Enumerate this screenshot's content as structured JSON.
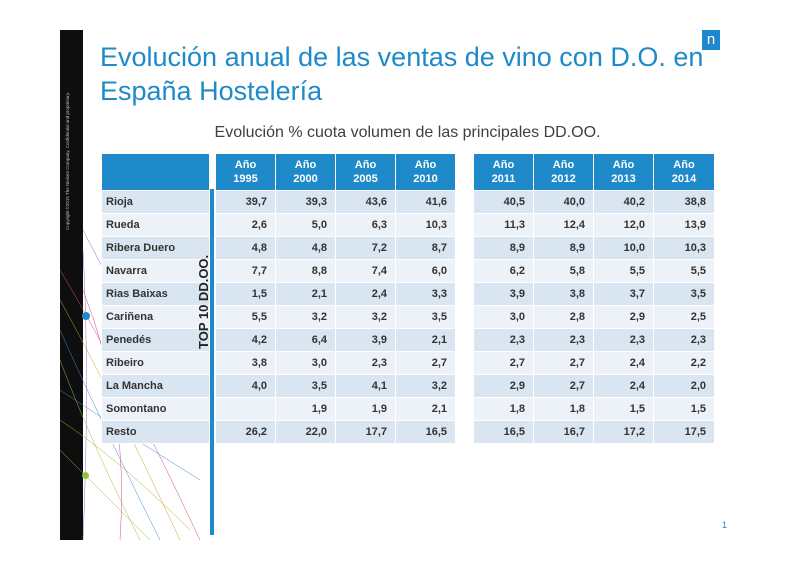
{
  "header": {
    "title_line1": "Evolución anual de las ventas de vino con D.O. en",
    "title_line2": "España Hostelería",
    "logo_letter": "n"
  },
  "sidebar": {
    "copyright": "Copyright ©2015 The Nielsen Company. Confidential and proprietary."
  },
  "table": {
    "caption": "Evolución % cuota volumen de las principales DD.OO.",
    "group_label": "TOP 10 DD.OO.",
    "columns": [
      {
        "l1": "Año",
        "l2": "1995"
      },
      {
        "l1": "Año",
        "l2": "2000"
      },
      {
        "l1": "Año",
        "l2": "2005"
      },
      {
        "l1": "Año",
        "l2": "2010"
      },
      {
        "l1": "Año",
        "l2": "2011"
      },
      {
        "l1": "Año",
        "l2": "2012"
      },
      {
        "l1": "Año",
        "l2": "2013"
      },
      {
        "l1": "Año",
        "l2": "2014"
      }
    ],
    "rows": [
      {
        "name": "Rioja",
        "values": [
          "39,7",
          "39,3",
          "43,6",
          "41,6",
          "40,5",
          "40,0",
          "40,2",
          "38,8"
        ]
      },
      {
        "name": "Rueda",
        "values": [
          "2,6",
          "5,0",
          "6,3",
          "10,3",
          "11,3",
          "12,4",
          "12,0",
          "13,9"
        ]
      },
      {
        "name": "Ribera Duero",
        "values": [
          "4,8",
          "4,8",
          "7,2",
          "8,7",
          "8,9",
          "8,9",
          "10,0",
          "10,3"
        ]
      },
      {
        "name": "Navarra",
        "values": [
          "7,7",
          "8,8",
          "7,4",
          "6,0",
          "6,2",
          "5,8",
          "5,5",
          "5,5"
        ]
      },
      {
        "name": "Rias Baixas",
        "values": [
          "1,5",
          "2,1",
          "2,4",
          "3,3",
          "3,9",
          "3,8",
          "3,7",
          "3,5"
        ]
      },
      {
        "name": "Cariñena",
        "values": [
          "5,5",
          "3,2",
          "3,2",
          "3,5",
          "3,0",
          "2,8",
          "2,9",
          "2,5"
        ]
      },
      {
        "name": "Penedés",
        "values": [
          "4,2",
          "6,4",
          "3,9",
          "2,1",
          "2,3",
          "2,3",
          "2,3",
          "2,3"
        ]
      },
      {
        "name": "Ribeiro",
        "values": [
          "3,8",
          "3,0",
          "2,3",
          "2,7",
          "2,7",
          "2,7",
          "2,4",
          "2,2"
        ]
      },
      {
        "name": "La Mancha",
        "values": [
          "4,0",
          "3,5",
          "4,1",
          "3,2",
          "2,9",
          "2,7",
          "2,4",
          "2,0"
        ]
      },
      {
        "name": "Somontano",
        "values": [
          "",
          "1,9",
          "1,9",
          "2,1",
          "1,8",
          "1,8",
          "1,5",
          "1,5"
        ]
      },
      {
        "name": "Resto",
        "values": [
          "26,2",
          "22,0",
          "17,7",
          "16,5",
          "16,5",
          "16,7",
          "17,2",
          "17,5"
        ]
      }
    ]
  },
  "footer": {
    "page_number": "1"
  },
  "colors": {
    "accent": "#1f8ac9",
    "row_dark": "#d9e5f1",
    "row_light": "#edf2f8",
    "band": "#0e0e0e"
  }
}
